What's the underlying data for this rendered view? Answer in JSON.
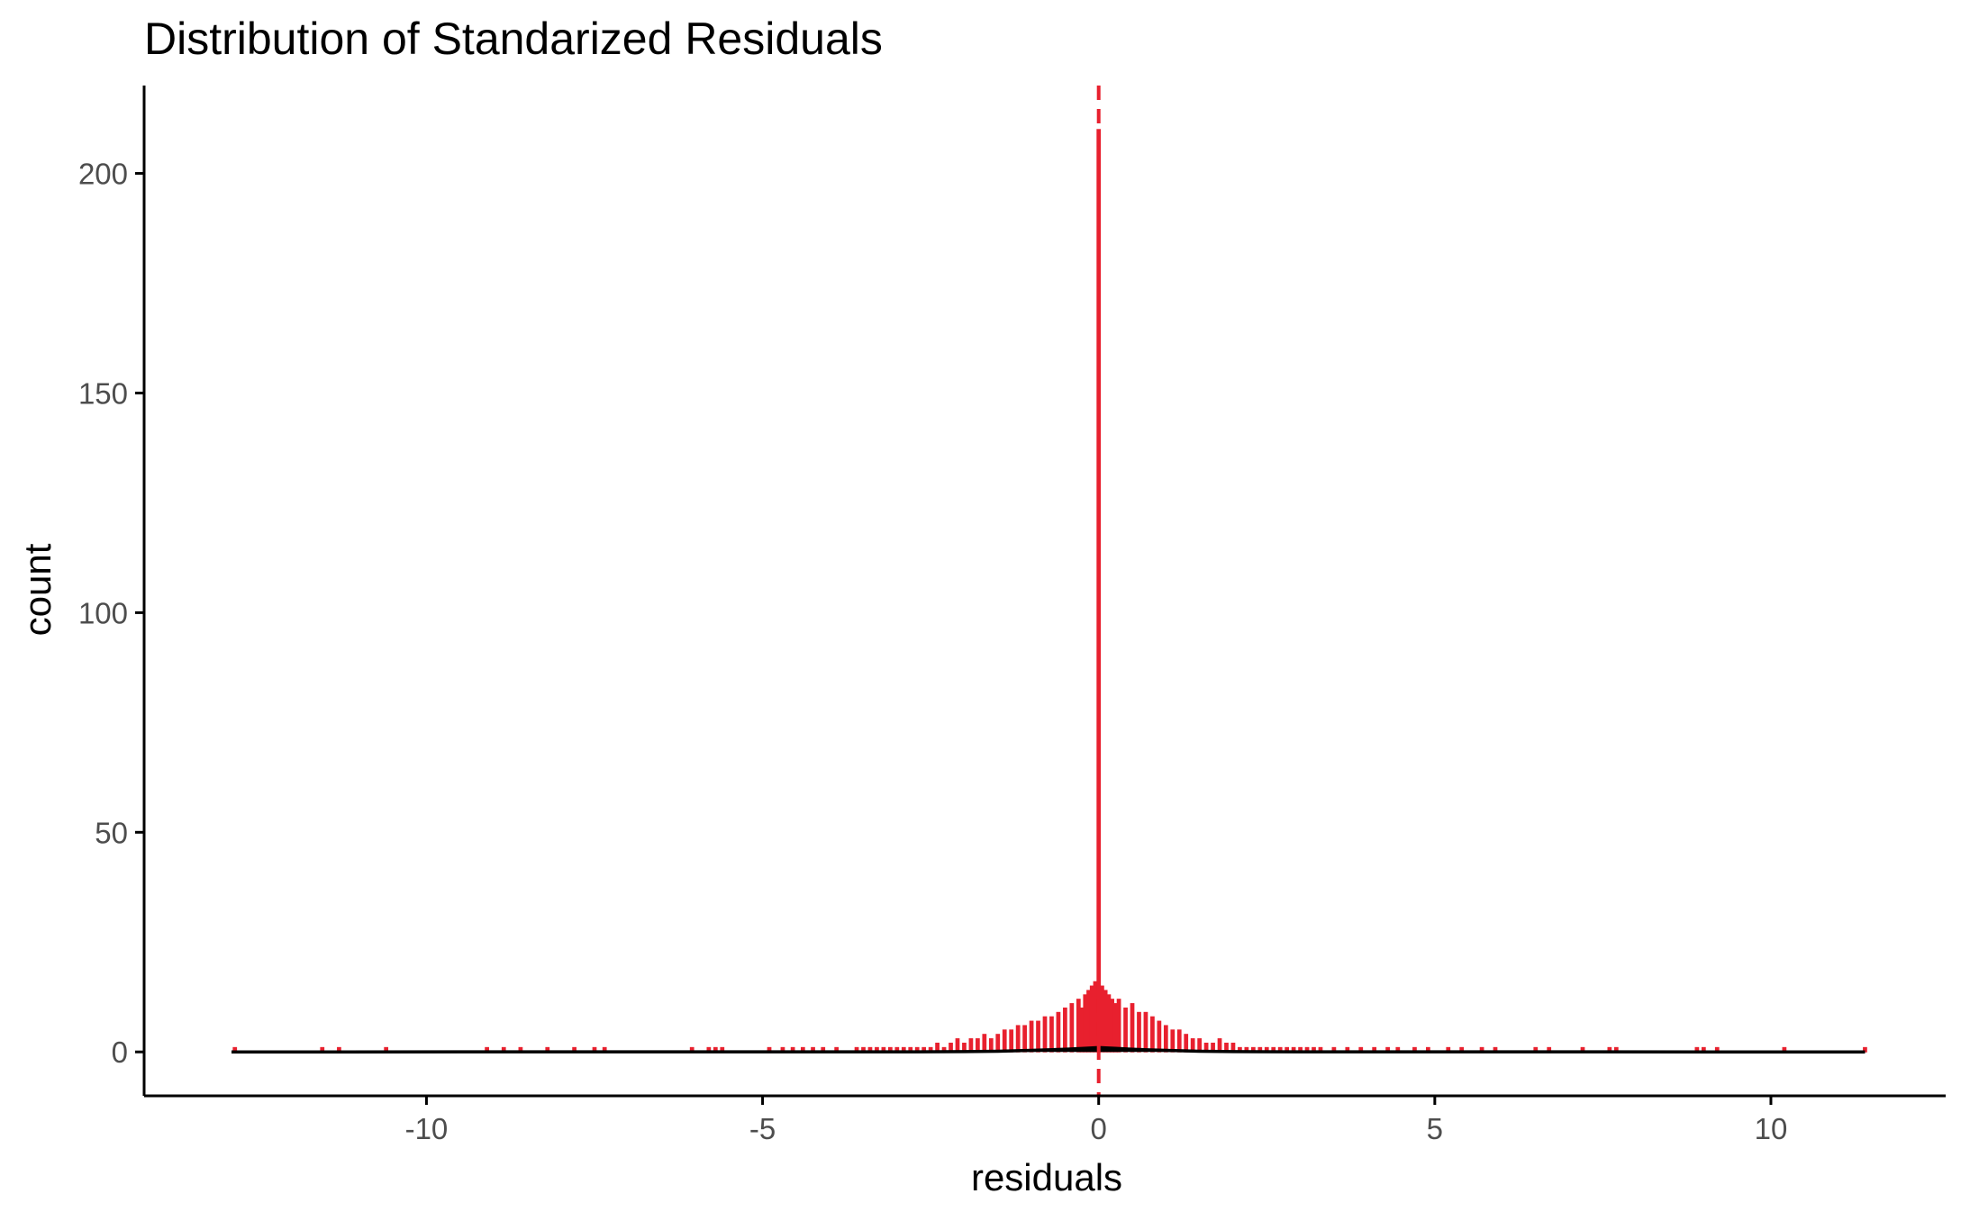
{
  "chart_data": {
    "type": "histogram",
    "title": "Distribution of Standarized Residuals",
    "xlabel": "residuals",
    "ylabel": "count",
    "xlim": [
      -14.2,
      12.6
    ],
    "ylim": [
      -10,
      220
    ],
    "x_ticks": [
      {
        "value": -10,
        "label": "-10"
      },
      {
        "value": -5,
        "label": "-5"
      },
      {
        "value": 0,
        "label": "0"
      },
      {
        "value": 5,
        "label": "5"
      },
      {
        "value": 10,
        "label": "10"
      }
    ],
    "y_ticks": [
      {
        "value": 0,
        "label": "0"
      },
      {
        "value": 50,
        "label": "50"
      },
      {
        "value": 100,
        "label": "100"
      },
      {
        "value": 150,
        "label": "150"
      },
      {
        "value": 200,
        "label": "200"
      }
    ],
    "grid": false,
    "legend": "none",
    "bin_width": 0.05,
    "bar_color": "#e8202e",
    "density_color": "#000000",
    "reference_line": {
      "x": 0,
      "style": "dashed",
      "color": "#e8202e"
    },
    "bins": [
      {
        "x": -12.85,
        "count": 1
      },
      {
        "x": -11.55,
        "count": 1
      },
      {
        "x": -11.3,
        "count": 1
      },
      {
        "x": -10.6,
        "count": 1
      },
      {
        "x": -9.1,
        "count": 1
      },
      {
        "x": -8.85,
        "count": 1
      },
      {
        "x": -8.6,
        "count": 1
      },
      {
        "x": -8.2,
        "count": 1
      },
      {
        "x": -7.8,
        "count": 1
      },
      {
        "x": -7.5,
        "count": 1
      },
      {
        "x": -7.35,
        "count": 1
      },
      {
        "x": -6.05,
        "count": 1
      },
      {
        "x": -5.8,
        "count": 1
      },
      {
        "x": -5.7,
        "count": 1
      },
      {
        "x": -5.6,
        "count": 1
      },
      {
        "x": -4.9,
        "count": 1
      },
      {
        "x": -4.7,
        "count": 1
      },
      {
        "x": -4.55,
        "count": 1
      },
      {
        "x": -4.4,
        "count": 1
      },
      {
        "x": -4.25,
        "count": 1
      },
      {
        "x": -4.1,
        "count": 1
      },
      {
        "x": -3.9,
        "count": 1
      },
      {
        "x": -3.6,
        "count": 1
      },
      {
        "x": -3.5,
        "count": 1
      },
      {
        "x": -3.4,
        "count": 1
      },
      {
        "x": -3.3,
        "count": 1
      },
      {
        "x": -3.2,
        "count": 1
      },
      {
        "x": -3.1,
        "count": 1
      },
      {
        "x": -3.0,
        "count": 1
      },
      {
        "x": -2.9,
        "count": 1
      },
      {
        "x": -2.8,
        "count": 1
      },
      {
        "x": -2.7,
        "count": 1
      },
      {
        "x": -2.6,
        "count": 1
      },
      {
        "x": -2.5,
        "count": 1
      },
      {
        "x": -2.4,
        "count": 2
      },
      {
        "x": -2.3,
        "count": 1
      },
      {
        "x": -2.2,
        "count": 2
      },
      {
        "x": -2.1,
        "count": 3
      },
      {
        "x": -2.0,
        "count": 2
      },
      {
        "x": -1.9,
        "count": 3
      },
      {
        "x": -1.8,
        "count": 3
      },
      {
        "x": -1.7,
        "count": 4
      },
      {
        "x": -1.6,
        "count": 3
      },
      {
        "x": -1.5,
        "count": 4
      },
      {
        "x": -1.4,
        "count": 5
      },
      {
        "x": -1.3,
        "count": 5
      },
      {
        "x": -1.2,
        "count": 6
      },
      {
        "x": -1.1,
        "count": 6
      },
      {
        "x": -1.0,
        "count": 7
      },
      {
        "x": -0.9,
        "count": 7
      },
      {
        "x": -0.8,
        "count": 8
      },
      {
        "x": -0.7,
        "count": 8
      },
      {
        "x": -0.6,
        "count": 9
      },
      {
        "x": -0.5,
        "count": 10
      },
      {
        "x": -0.4,
        "count": 11
      },
      {
        "x": -0.3,
        "count": 12
      },
      {
        "x": -0.25,
        "count": 10
      },
      {
        "x": -0.2,
        "count": 13
      },
      {
        "x": -0.15,
        "count": 14
      },
      {
        "x": -0.1,
        "count": 15
      },
      {
        "x": -0.05,
        "count": 16
      },
      {
        "x": 0.0,
        "count": 210
      },
      {
        "x": 0.05,
        "count": 15
      },
      {
        "x": 0.1,
        "count": 14
      },
      {
        "x": 0.15,
        "count": 13
      },
      {
        "x": 0.2,
        "count": 12
      },
      {
        "x": 0.25,
        "count": 11
      },
      {
        "x": 0.3,
        "count": 12
      },
      {
        "x": 0.4,
        "count": 10
      },
      {
        "x": 0.5,
        "count": 11
      },
      {
        "x": 0.6,
        "count": 9
      },
      {
        "x": 0.7,
        "count": 9
      },
      {
        "x": 0.8,
        "count": 8
      },
      {
        "x": 0.9,
        "count": 7
      },
      {
        "x": 1.0,
        "count": 6
      },
      {
        "x": 1.1,
        "count": 5
      },
      {
        "x": 1.2,
        "count": 5
      },
      {
        "x": 1.3,
        "count": 4
      },
      {
        "x": 1.4,
        "count": 3
      },
      {
        "x": 1.5,
        "count": 3
      },
      {
        "x": 1.6,
        "count": 2
      },
      {
        "x": 1.7,
        "count": 2
      },
      {
        "x": 1.8,
        "count": 3
      },
      {
        "x": 1.9,
        "count": 2
      },
      {
        "x": 2.0,
        "count": 2
      },
      {
        "x": 2.1,
        "count": 1
      },
      {
        "x": 2.2,
        "count": 1
      },
      {
        "x": 2.3,
        "count": 1
      },
      {
        "x": 2.4,
        "count": 1
      },
      {
        "x": 2.5,
        "count": 1
      },
      {
        "x": 2.6,
        "count": 1
      },
      {
        "x": 2.7,
        "count": 1
      },
      {
        "x": 2.8,
        "count": 1
      },
      {
        "x": 2.9,
        "count": 1
      },
      {
        "x": 3.0,
        "count": 1
      },
      {
        "x": 3.1,
        "count": 1
      },
      {
        "x": 3.2,
        "count": 1
      },
      {
        "x": 3.3,
        "count": 1
      },
      {
        "x": 3.5,
        "count": 1
      },
      {
        "x": 3.7,
        "count": 1
      },
      {
        "x": 3.9,
        "count": 1
      },
      {
        "x": 4.1,
        "count": 1
      },
      {
        "x": 4.3,
        "count": 1
      },
      {
        "x": 4.45,
        "count": 1
      },
      {
        "x": 4.7,
        "count": 1
      },
      {
        "x": 4.9,
        "count": 1
      },
      {
        "x": 5.2,
        "count": 1
      },
      {
        "x": 5.4,
        "count": 1
      },
      {
        "x": 5.7,
        "count": 1
      },
      {
        "x": 5.9,
        "count": 1
      },
      {
        "x": 6.5,
        "count": 1
      },
      {
        "x": 6.7,
        "count": 1
      },
      {
        "x": 7.2,
        "count": 1
      },
      {
        "x": 7.6,
        "count": 1
      },
      {
        "x": 7.7,
        "count": 1
      },
      {
        "x": 8.9,
        "count": 1
      },
      {
        "x": 9.0,
        "count": 1
      },
      {
        "x": 9.2,
        "count": 1
      },
      {
        "x": 10.2,
        "count": 1
      },
      {
        "x": 11.4,
        "count": 1
      }
    ],
    "density_curve": [
      {
        "x": -12.9,
        "y": 0
      },
      {
        "x": -3.0,
        "y": 0.02
      },
      {
        "x": -2.0,
        "y": 0.06
      },
      {
        "x": -1.5,
        "y": 0.15
      },
      {
        "x": -1.0,
        "y": 0.35
      },
      {
        "x": -0.5,
        "y": 0.6
      },
      {
        "x": -0.25,
        "y": 0.8
      },
      {
        "x": 0.0,
        "y": 1.0
      },
      {
        "x": 0.25,
        "y": 0.8
      },
      {
        "x": 0.5,
        "y": 0.6
      },
      {
        "x": 1.0,
        "y": 0.35
      },
      {
        "x": 1.5,
        "y": 0.15
      },
      {
        "x": 2.0,
        "y": 0.06
      },
      {
        "x": 3.0,
        "y": 0.02
      },
      {
        "x": 11.4,
        "y": 0
      }
    ]
  }
}
